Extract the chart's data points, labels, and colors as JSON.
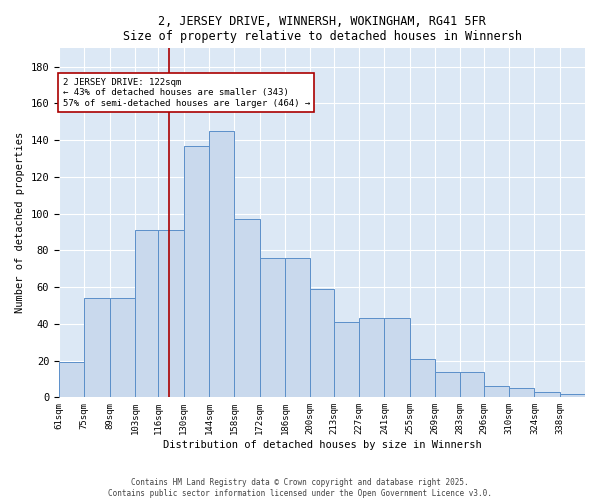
{
  "title": "2, JERSEY DRIVE, WINNERSH, WOKINGHAM, RG41 5FR",
  "subtitle": "Size of property relative to detached houses in Winnersh",
  "xlabel": "Distribution of detached houses by size in Winnersh",
  "ylabel": "Number of detached properties",
  "categories": [
    "61sqm",
    "75sqm",
    "89sqm",
    "103sqm",
    "116sqm",
    "130sqm",
    "144sqm",
    "158sqm",
    "172sqm",
    "186sqm",
    "200sqm",
    "213sqm",
    "227sqm",
    "241sqm",
    "255sqm",
    "269sqm",
    "283sqm",
    "296sqm",
    "310sqm",
    "324sqm",
    "338sqm"
  ],
  "bar_heights": [
    19,
    54,
    54,
    91,
    91,
    137,
    145,
    97,
    76,
    76,
    59,
    41,
    43,
    43,
    21,
    14,
    14,
    6,
    5,
    3,
    2
  ],
  "bar_color": "#c9d9ed",
  "bar_edge_color": "#5b8fc9",
  "vline_x": 122,
  "vline_color": "#aa0000",
  "annotation_text": "2 JERSEY DRIVE: 122sqm\n← 43% of detached houses are smaller (343)\n57% of semi-detached houses are larger (464) →",
  "annotation_box_color": "white",
  "annotation_box_edge": "#aa0000",
  "ylim": [
    0,
    190
  ],
  "yticks": [
    0,
    20,
    40,
    60,
    80,
    100,
    120,
    140,
    160,
    180
  ],
  "bg_color": "#dce8f5",
  "footer": "Contains HM Land Registry data © Crown copyright and database right 2025.\nContains public sector information licensed under the Open Government Licence v3.0.",
  "bin_edges": [
    61,
    75,
    89,
    103,
    116,
    130,
    144,
    158,
    172,
    186,
    200,
    213,
    227,
    241,
    255,
    269,
    283,
    296,
    310,
    324,
    338
  ]
}
